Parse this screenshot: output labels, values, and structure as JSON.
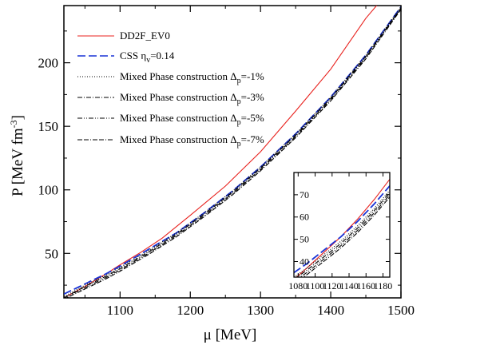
{
  "chart_data": {
    "type": "line",
    "xlabel": "μ [MeV]",
    "ylabel_parts": [
      "P [MeV fm",
      "-3",
      "]"
    ],
    "xlim": [
      1020,
      1500
    ],
    "ylim": [
      15,
      245
    ],
    "xticks": [
      1100,
      1200,
      1300,
      1400,
      1500
    ],
    "yticks": [
      50,
      100,
      150,
      200
    ],
    "xtick_labels": [
      "1100",
      "1200",
      "1300",
      "1400",
      "1500"
    ],
    "ytick_labels": [
      "50",
      "100",
      "150",
      "200"
    ],
    "legend_position": "top-left",
    "series": [
      {
        "name": "DD2F_EV0",
        "label_parts": [
          "DD2F_EV0"
        ],
        "color": "#e8201c",
        "style": "solid",
        "x": [
          1020,
          1050,
          1080,
          1100,
          1130,
          1160,
          1200,
          1250,
          1300,
          1350,
          1400,
          1450,
          1470
        ],
        "y": [
          15,
          24,
          34,
          41,
          51,
          62,
          80,
          103,
          130,
          162,
          195,
          235,
          248
        ]
      },
      {
        "name": "CSS η_v=0.14",
        "label_parts": [
          "CSS η",
          "v",
          "=0.14"
        ],
        "color": "#1a33d6",
        "style": "long-dash",
        "x": [
          1020,
          1050,
          1080,
          1100,
          1140,
          1180,
          1220,
          1260,
          1300,
          1350,
          1400,
          1450,
          1500
        ],
        "y": [
          18,
          26,
          34,
          40,
          53,
          66,
          82,
          99,
          118,
          144,
          173,
          206,
          244
        ]
      },
      {
        "name": "Mixed Phase construction Δp=-1%",
        "label_parts": [
          "Mixed Phase construction Δ",
          "p",
          "=-1%"
        ],
        "color": "#000000",
        "style": "dotted",
        "x": [
          1020,
          1050,
          1080,
          1100,
          1140,
          1180,
          1220,
          1260,
          1300,
          1350,
          1400,
          1450,
          1500
        ],
        "y": [
          16,
          25,
          33,
          39,
          52,
          66,
          82,
          99,
          118,
          144,
          173,
          206,
          244
        ]
      },
      {
        "name": "Mixed Phase construction Δp=-3%",
        "label_parts": [
          "Mixed Phase construction Δ",
          "p",
          "=-3%"
        ],
        "color": "#000000",
        "style": "dash-dot",
        "x": [
          1020,
          1050,
          1080,
          1100,
          1140,
          1180,
          1220,
          1260,
          1300,
          1350,
          1400,
          1450,
          1500
        ],
        "y": [
          15,
          24,
          32,
          38,
          51,
          65,
          81,
          98,
          117,
          143,
          172,
          205,
          243
        ]
      },
      {
        "name": "Mixed Phase construction Δp=-5%",
        "label_parts": [
          "Mixed Phase construction Δ",
          "p",
          "=-5%"
        ],
        "color": "#000000",
        "style": "dash-dot-dot",
        "x": [
          1020,
          1050,
          1080,
          1100,
          1140,
          1180,
          1220,
          1260,
          1300,
          1350,
          1400,
          1450,
          1500
        ],
        "y": [
          15,
          23,
          31,
          37,
          50,
          64,
          80,
          97,
          116,
          142,
          171,
          204,
          243
        ]
      },
      {
        "name": "Mixed Phase construction Δp=-7%",
        "label_parts": [
          "Mixed Phase construction Δ",
          "p",
          "=-7%"
        ],
        "color": "#000000",
        "style": "dash-dash-dot",
        "x": [
          1020,
          1050,
          1080,
          1100,
          1140,
          1180,
          1220,
          1260,
          1300,
          1350,
          1400,
          1450,
          1500
        ],
        "y": [
          14,
          22,
          30,
          36,
          49,
          63,
          79,
          96,
          115,
          141,
          170,
          203,
          242
        ]
      }
    ],
    "inset": {
      "xlim": [
        1075,
        1188
      ],
      "ylim": [
        33,
        80
      ],
      "xticks": [
        1080,
        1100,
        1120,
        1140,
        1160,
        1180
      ],
      "yticks": [
        40,
        50,
        60,
        70
      ],
      "xtick_labels": [
        "1080",
        "1100",
        "1120",
        "1140",
        "1160",
        "1180"
      ],
      "ytick_labels": [
        "40",
        "50",
        "60",
        "70"
      ],
      "series": [
        {
          "color": "#e8201c",
          "style": "solid",
          "x": [
            1075,
            1090,
            1110,
            1130,
            1150,
            1170,
            1188
          ],
          "y": [
            32,
            37,
            44,
            51,
            59,
            68,
            77
          ]
        },
        {
          "color": "#1a33d6",
          "style": "long-dash",
          "x": [
            1075,
            1090,
            1110,
            1130,
            1150,
            1170,
            1188
          ],
          "y": [
            35,
            39,
            45,
            51,
            58,
            66,
            74
          ]
        },
        {
          "color": "#000000",
          "style": "dotted",
          "x": [
            1075,
            1090,
            1110,
            1130,
            1150,
            1170,
            1188
          ],
          "y": [
            33,
            37,
            43,
            49,
            56,
            64,
            72
          ]
        },
        {
          "color": "#000000",
          "style": "dash-dot",
          "x": [
            1075,
            1090,
            1110,
            1130,
            1150,
            1170,
            1188
          ],
          "y": [
            32,
            36,
            42,
            48,
            55,
            63,
            71
          ]
        },
        {
          "color": "#000000",
          "style": "dash-dot-dot",
          "x": [
            1075,
            1090,
            1110,
            1130,
            1150,
            1170,
            1188
          ],
          "y": [
            31,
            35,
            41,
            47,
            54,
            62,
            70
          ]
        },
        {
          "color": "#000000",
          "style": "dash-dash-dot",
          "x": [
            1075,
            1090,
            1110,
            1130,
            1150,
            1170,
            1188
          ],
          "y": [
            30,
            34,
            40,
            46,
            53,
            61,
            69
          ]
        }
      ]
    }
  }
}
